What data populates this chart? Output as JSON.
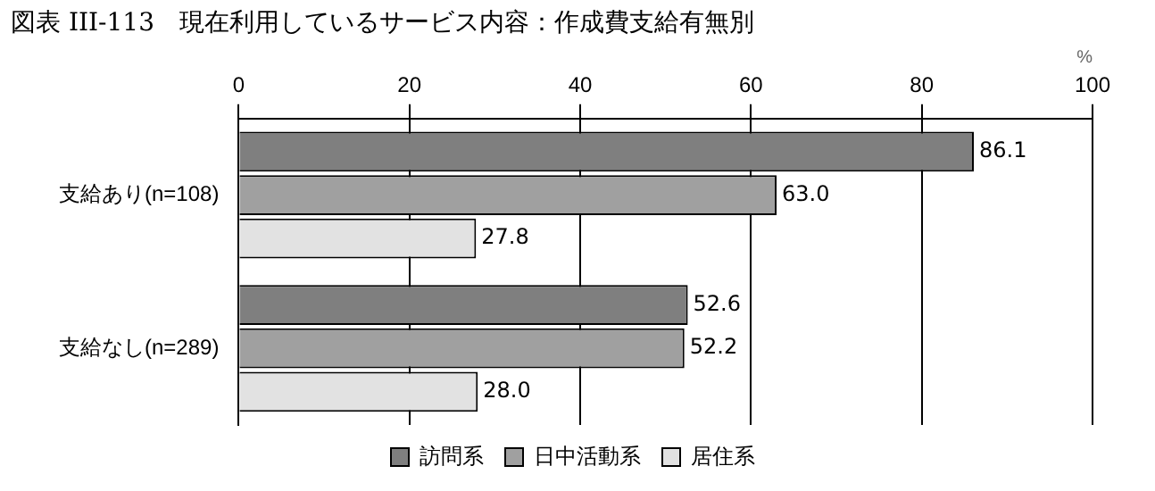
{
  "chart_data": {
    "type": "bar",
    "orientation": "horizontal",
    "title": "図表 III-113　現在利用しているサービス内容：作成費支給有無別",
    "xlabel": "%",
    "categories": [
      "支給あり(n=108)",
      "支給なし(n=289)"
    ],
    "series": [
      {
        "name": "訪問系",
        "color": "#7f7f7f",
        "values": [
          86.1,
          52.6
        ],
        "value_labels": [
          "86.1",
          "52.6"
        ]
      },
      {
        "name": "日中活動系",
        "color": "#a0a0a0",
        "values": [
          63.0,
          52.2
        ],
        "value_labels": [
          "63.0",
          "52.2"
        ]
      },
      {
        "name": "居住系",
        "color": "#e2e2e2",
        "values": [
          27.8,
          28.0
        ],
        "value_labels": [
          "27.8",
          "28.0"
        ]
      }
    ],
    "xlim": [
      0,
      100
    ],
    "xticks": [
      0,
      20,
      40,
      60,
      80,
      100
    ],
    "grid": "x",
    "legend": "bottom"
  }
}
